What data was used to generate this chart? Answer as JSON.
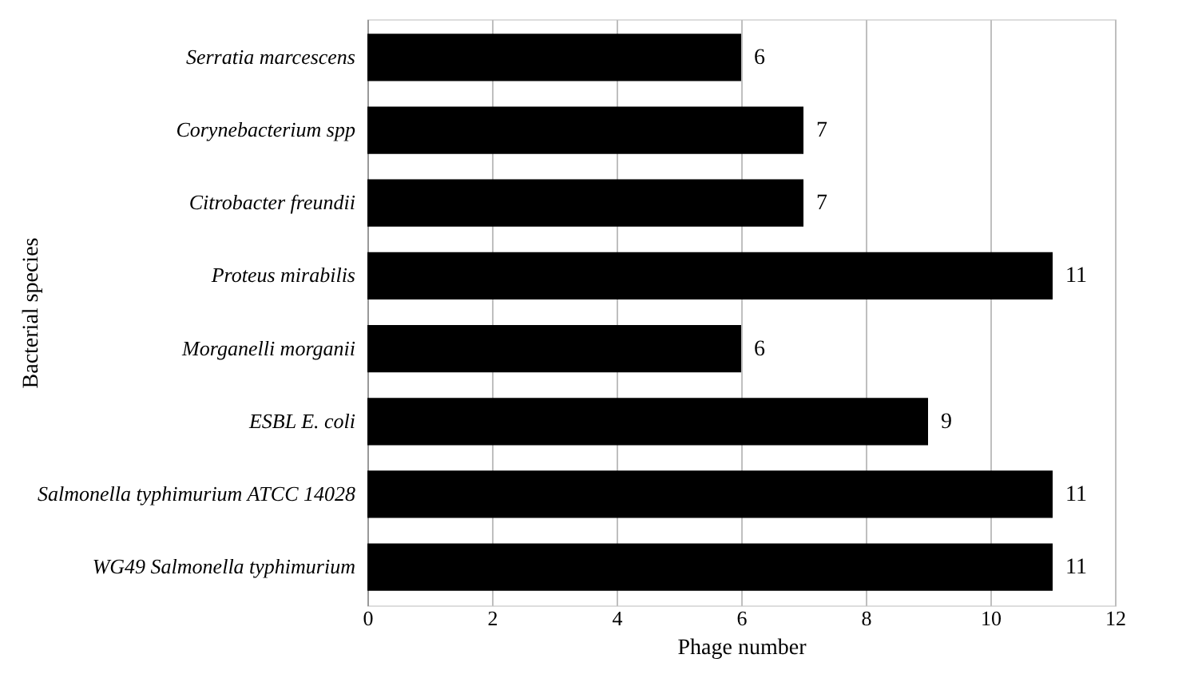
{
  "chart_data": {
    "type": "bar",
    "orientation": "horizontal",
    "xlabel": "Phage number",
    "ylabel": "Bacterial species",
    "categories": [
      "Serratia marcescens",
      "Corynebacterium spp",
      "Citrobacter freundii",
      "Proteus mirabilis",
      "Morganelli morganii",
      "ESBL E. coli",
      "Salmonella typhimurium ATCC 14028",
      "WG49 Salmonella typhimurium"
    ],
    "values": [
      6,
      7,
      7,
      11,
      6,
      9,
      11,
      11
    ],
    "color": "#000000",
    "xlim": [
      0,
      12
    ],
    "xticks": [
      0,
      2,
      4,
      6,
      8,
      10,
      12
    ],
    "grid": "x",
    "data_labels": true
  }
}
